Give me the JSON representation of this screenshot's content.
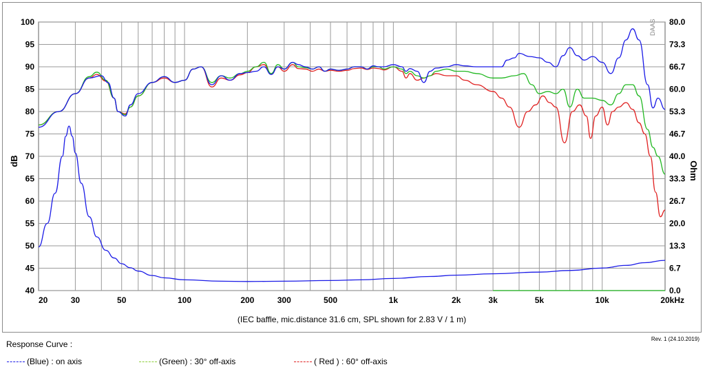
{
  "chart_data": {
    "type": "line",
    "x_scale": "log",
    "xlim": [
      20,
      20000
    ],
    "x_ticks": [
      20,
      30,
      50,
      100,
      200,
      300,
      500,
      1000,
      2000,
      3000,
      5000,
      10000,
      20000
    ],
    "x_tick_labels": [
      "20",
      "30",
      "50",
      "100",
      "200",
      "300",
      "500",
      "1k",
      "2k",
      "3k",
      "5k",
      "10k",
      "20kHz"
    ],
    "ylabel": "dB",
    "ylim": [
      40,
      100
    ],
    "y_ticks": [
      40,
      45,
      50,
      55,
      60,
      65,
      70,
      75,
      80,
      85,
      90,
      95,
      100
    ],
    "y_tick_labels": [
      "40",
      "45",
      "50",
      "55",
      "60",
      "65",
      "70",
      "75",
      "80",
      "85",
      "90",
      "95",
      "100"
    ],
    "y2label": "Ohm",
    "y2lim": [
      0,
      80
    ],
    "y2_tick_labels": [
      "0.0",
      "6.7",
      "13.3",
      "20.0",
      "26.7",
      "33.3",
      "40.0",
      "46.7",
      "53.3",
      "60.0",
      "66.7",
      "73.3",
      "80.0"
    ],
    "grid": true,
    "watermark": "DAAS",
    "note": "(IEC baffle, mic.distance 31.6 cm, SPL shown for 2.83 V / 1 m)",
    "series": [
      {
        "name": "on axis",
        "color": "#1a1ae6",
        "axis": "dB",
        "points": [
          [
            20,
            76.5
          ],
          [
            25,
            80
          ],
          [
            30,
            84
          ],
          [
            35,
            87.5
          ],
          [
            40,
            88
          ],
          [
            43,
            86.5
          ],
          [
            46,
            83
          ],
          [
            48,
            80
          ],
          [
            52,
            79
          ],
          [
            55,
            81.5
          ],
          [
            60,
            84
          ],
          [
            70,
            86.5
          ],
          [
            80,
            87.8
          ],
          [
            90,
            86.5
          ],
          [
            100,
            87
          ],
          [
            110,
            89.5
          ],
          [
            120,
            90
          ],
          [
            135,
            86
          ],
          [
            150,
            88
          ],
          [
            165,
            87
          ],
          [
            185,
            88.5
          ],
          [
            200,
            88.7
          ],
          [
            220,
            89
          ],
          [
            240,
            90
          ],
          [
            260,
            88.3
          ],
          [
            280,
            90
          ],
          [
            300,
            89.5
          ],
          [
            330,
            91
          ],
          [
            350,
            90.5
          ],
          [
            380,
            90
          ],
          [
            410,
            89.5
          ],
          [
            440,
            90
          ],
          [
            470,
            89
          ],
          [
            500,
            89.5
          ],
          [
            550,
            89.2
          ],
          [
            600,
            89.5
          ],
          [
            650,
            90
          ],
          [
            700,
            90
          ],
          [
            750,
            89.5
          ],
          [
            800,
            90.2
          ],
          [
            850,
            90
          ],
          [
            900,
            90
          ],
          [
            1000,
            90.5
          ],
          [
            1100,
            90
          ],
          [
            1150,
            89
          ],
          [
            1200,
            89.6
          ],
          [
            1300,
            89
          ],
          [
            1400,
            86.5
          ],
          [
            1500,
            89
          ],
          [
            1600,
            89.7
          ],
          [
            1800,
            90
          ],
          [
            2000,
            90.5
          ],
          [
            2200,
            90.2
          ],
          [
            2500,
            90
          ],
          [
            3000,
            90
          ],
          [
            3300,
            90
          ],
          [
            3500,
            91.5
          ],
          [
            3800,
            92
          ],
          [
            4000,
            93
          ],
          [
            4500,
            92.3
          ],
          [
            5000,
            92
          ],
          [
            5500,
            91
          ],
          [
            6000,
            90
          ],
          [
            6500,
            92.5
          ],
          [
            7000,
            94.3
          ],
          [
            7600,
            92.5
          ],
          [
            8200,
            91.5
          ],
          [
            9000,
            92.3
          ],
          [
            10000,
            91
          ],
          [
            11000,
            88.5
          ],
          [
            12000,
            92
          ],
          [
            13000,
            96
          ],
          [
            14000,
            98.5
          ],
          [
            15000,
            96
          ],
          [
            16500,
            86
          ],
          [
            17500,
            80.8
          ],
          [
            18500,
            83
          ],
          [
            20000,
            80.5
          ]
        ]
      },
      {
        "name": "30° off-axis",
        "color": "#22b822",
        "axis": "dB",
        "points": [
          [
            20,
            77
          ],
          [
            25,
            80
          ],
          [
            30,
            84
          ],
          [
            35,
            87.8
          ],
          [
            38,
            88.8
          ],
          [
            42,
            87
          ],
          [
            46,
            83
          ],
          [
            48,
            80
          ],
          [
            52,
            79.3
          ],
          [
            55,
            81
          ],
          [
            60,
            83.5
          ],
          [
            70,
            86.5
          ],
          [
            80,
            87.8
          ],
          [
            90,
            86.5
          ],
          [
            100,
            87
          ],
          [
            110,
            89.5
          ],
          [
            120,
            90
          ],
          [
            135,
            86.5
          ],
          [
            150,
            88
          ],
          [
            165,
            87.5
          ],
          [
            185,
            88.5
          ],
          [
            200,
            89
          ],
          [
            220,
            90
          ],
          [
            240,
            91
          ],
          [
            260,
            88.5
          ],
          [
            280,
            90.5
          ],
          [
            300,
            89.5
          ],
          [
            330,
            91
          ],
          [
            350,
            90
          ],
          [
            380,
            89.8
          ],
          [
            410,
            89.5
          ],
          [
            440,
            90
          ],
          [
            470,
            89
          ],
          [
            500,
            89.5
          ],
          [
            550,
            89.2
          ],
          [
            600,
            89.5
          ],
          [
            650,
            90
          ],
          [
            700,
            90
          ],
          [
            750,
            89.5
          ],
          [
            800,
            90
          ],
          [
            850,
            90
          ],
          [
            900,
            89.5
          ],
          [
            1000,
            90
          ],
          [
            1100,
            89.5
          ],
          [
            1150,
            88.5
          ],
          [
            1200,
            89
          ],
          [
            1300,
            88
          ],
          [
            1400,
            87.5
          ],
          [
            1500,
            88
          ],
          [
            1600,
            89
          ],
          [
            1800,
            89.5
          ],
          [
            2000,
            89
          ],
          [
            2200,
            89
          ],
          [
            2500,
            88.5
          ],
          [
            3000,
            87.5
          ],
          [
            3300,
            87.5
          ],
          [
            3800,
            88
          ],
          [
            4200,
            88.5
          ],
          [
            4600,
            86
          ],
          [
            5000,
            84
          ],
          [
            5500,
            84.5
          ],
          [
            6000,
            84
          ],
          [
            6500,
            85
          ],
          [
            7000,
            81
          ],
          [
            7600,
            85
          ],
          [
            8200,
            83
          ],
          [
            9000,
            83
          ],
          [
            10000,
            82.5
          ],
          [
            11000,
            81.5
          ],
          [
            12000,
            84
          ],
          [
            13000,
            86
          ],
          [
            14000,
            86
          ],
          [
            15000,
            83.5
          ],
          [
            16500,
            76
          ],
          [
            17500,
            72
          ],
          [
            18500,
            70
          ],
          [
            20000,
            66
          ]
        ]
      },
      {
        "name": "60° off-axis",
        "color": "#e02020",
        "axis": "dB",
        "points": [
          [
            20,
            77
          ],
          [
            25,
            80
          ],
          [
            30,
            84
          ],
          [
            35,
            87.5
          ],
          [
            38,
            88.3
          ],
          [
            42,
            86.8
          ],
          [
            46,
            83
          ],
          [
            48,
            80
          ],
          [
            52,
            79.5
          ],
          [
            55,
            81
          ],
          [
            60,
            83.5
          ],
          [
            70,
            86.5
          ],
          [
            80,
            87.5
          ],
          [
            90,
            86.5
          ],
          [
            100,
            87
          ],
          [
            110,
            89.5
          ],
          [
            120,
            90
          ],
          [
            135,
            85.5
          ],
          [
            150,
            87.5
          ],
          [
            165,
            87
          ],
          [
            185,
            88.2
          ],
          [
            200,
            88.7
          ],
          [
            220,
            90
          ],
          [
            240,
            90.5
          ],
          [
            260,
            88.3
          ],
          [
            280,
            90
          ],
          [
            300,
            89
          ],
          [
            330,
            90.5
          ],
          [
            350,
            89.6
          ],
          [
            380,
            89.5
          ],
          [
            410,
            89
          ],
          [
            440,
            89.5
          ],
          [
            470,
            89
          ],
          [
            500,
            89.2
          ],
          [
            550,
            89
          ],
          [
            600,
            89.2
          ],
          [
            650,
            89.6
          ],
          [
            700,
            89.7
          ],
          [
            750,
            89.4
          ],
          [
            800,
            89.7
          ],
          [
            850,
            89.6
          ],
          [
            900,
            89.3
          ],
          [
            1000,
            90
          ],
          [
            1100,
            89
          ],
          [
            1150,
            87.5
          ],
          [
            1200,
            88.5
          ],
          [
            1300,
            87
          ],
          [
            1400,
            87.5
          ],
          [
            1500,
            88
          ],
          [
            1600,
            88.5
          ],
          [
            1800,
            88
          ],
          [
            2000,
            88
          ],
          [
            2200,
            87
          ],
          [
            2500,
            86
          ],
          [
            3000,
            84.5
          ],
          [
            3300,
            83
          ],
          [
            3600,
            81
          ],
          [
            4000,
            76.5
          ],
          [
            4400,
            80
          ],
          [
            4800,
            81.5
          ],
          [
            5200,
            83.5
          ],
          [
            5600,
            82
          ],
          [
            6000,
            81
          ],
          [
            6600,
            73
          ],
          [
            7200,
            80
          ],
          [
            7800,
            81.5
          ],
          [
            8400,
            79
          ],
          [
            8800,
            74
          ],
          [
            9300,
            79
          ],
          [
            10000,
            81
          ],
          [
            10600,
            77
          ],
          [
            11200,
            80
          ],
          [
            12000,
            81
          ],
          [
            13000,
            82
          ],
          [
            14000,
            80.5
          ],
          [
            15000,
            77.5
          ],
          [
            16000,
            75
          ],
          [
            17000,
            70
          ],
          [
            18000,
            62
          ],
          [
            19000,
            56.5
          ],
          [
            20000,
            58
          ]
        ]
      },
      {
        "name": "impedance",
        "color": "#1a1ae6",
        "axis": "Ohm",
        "points": [
          [
            20,
            13
          ],
          [
            22,
            20
          ],
          [
            24,
            29
          ],
          [
            26,
            40
          ],
          [
            27,
            46
          ],
          [
            28,
            49
          ],
          [
            29,
            46
          ],
          [
            30,
            41
          ],
          [
            32,
            32
          ],
          [
            35,
            22
          ],
          [
            38,
            16
          ],
          [
            42,
            12
          ],
          [
            46,
            9.7
          ],
          [
            50,
            8
          ],
          [
            55,
            6.8
          ],
          [
            60,
            5.8
          ],
          [
            70,
            4.5
          ],
          [
            80,
            3.8
          ],
          [
            100,
            3.2
          ],
          [
            150,
            2.8
          ],
          [
            200,
            2.7
          ],
          [
            300,
            2.8
          ],
          [
            500,
            3.0
          ],
          [
            700,
            3.2
          ],
          [
            1000,
            3.6
          ],
          [
            1500,
            4.2
          ],
          [
            2000,
            4.6
          ],
          [
            3000,
            5.0
          ],
          [
            5000,
            5.5
          ],
          [
            7000,
            6.0
          ],
          [
            10000,
            6.7
          ],
          [
            13000,
            7.5
          ],
          [
            16000,
            8.3
          ],
          [
            20000,
            9.0
          ]
        ]
      },
      {
        "name": "",
        "color": "#22b822",
        "axis": "Ohm",
        "points": [
          [
            3000,
            0
          ],
          [
            20000,
            0
          ]
        ]
      }
    ]
  },
  "legend": {
    "title": "Response Curve :",
    "items": [
      {
        "label": "(Blue)  : on axis",
        "color": "#1a1ae6"
      },
      {
        "label": "(Green) : 30° off-axis",
        "color": "#8ccf3a"
      },
      {
        "label": "( Red ) : 60° off-axis",
        "color": "#e02020"
      }
    ]
  },
  "revision": "Rev. 1 (24.10.2019)"
}
